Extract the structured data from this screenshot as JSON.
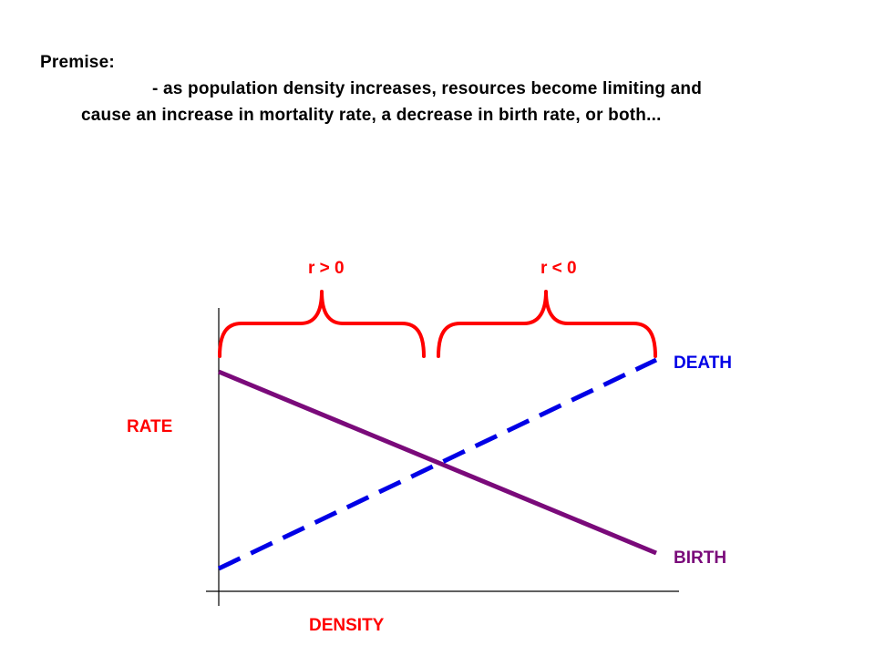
{
  "premise": {
    "title": "Premise:",
    "line1": "- as population density increases, resources become limiting and",
    "line2": "cause an increase in mortality rate, a decrease in birth rate, or both..."
  },
  "diagram": {
    "y_axis_label": "RATE",
    "x_axis_label": "DENSITY",
    "brace_left_label": "r > 0",
    "brace_right_label": "r < 0",
    "death_label": "DEATH",
    "birth_label": "BIRTH",
    "colors": {
      "death_line": "#0000e6",
      "birth_line": "#7a0a7a",
      "brace": "#ff0000",
      "axis_labels": "#ff0000",
      "brace_labels": "#ff0000",
      "death_label": "#0000e6",
      "birth_label": "#7a0a7a",
      "axes": "#000000"
    }
  }
}
